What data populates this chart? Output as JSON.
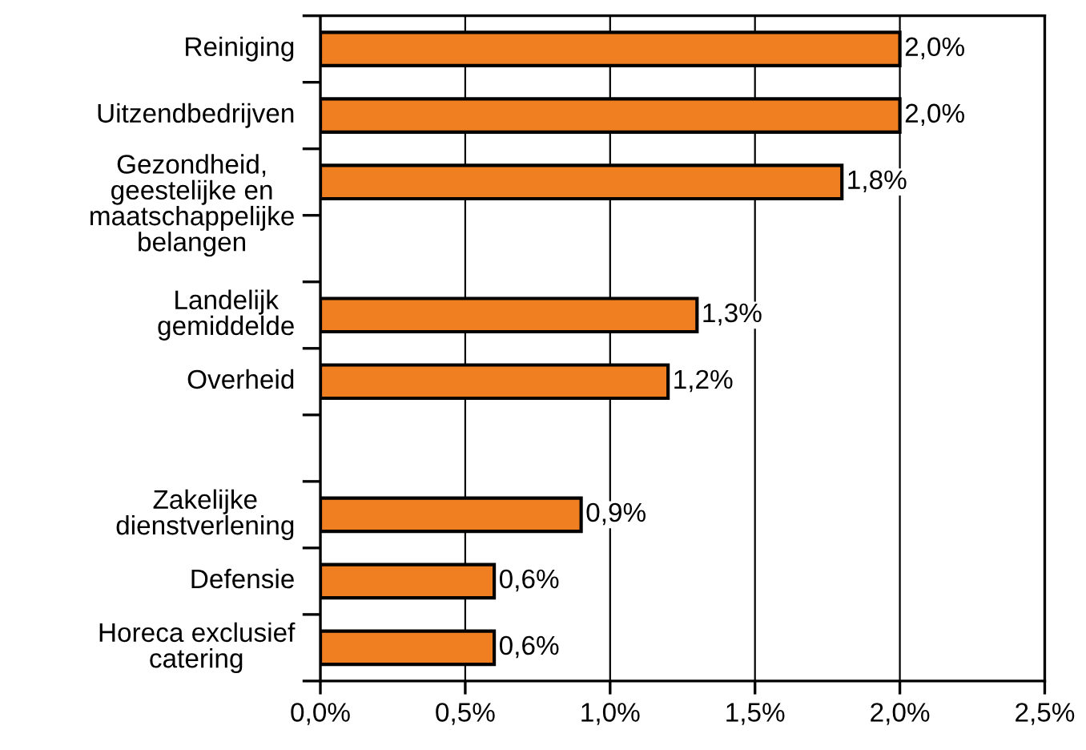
{
  "chart_data": {
    "type": "bar",
    "orientation": "horizontal",
    "categories": [
      "Reiniging",
      "Uitzendbedrijven",
      "Gezondheid,\ngeestelijke en\nmaatschappelijke\nbelangen",
      null,
      "Landelijk\ngemiddelde",
      "Overheid",
      null,
      "Zakelijke\ndienstverlening",
      "Defensie",
      "Horeca exclusief\ncatering"
    ],
    "values": [
      2.0,
      2.0,
      1.8,
      null,
      1.3,
      1.2,
      null,
      0.9,
      0.6,
      0.6
    ],
    "value_labels": [
      "2,0%",
      "2,0%",
      "1,8%",
      null,
      "1,3%",
      "1,2%",
      null,
      "0,9%",
      "0,6%",
      "0,6%"
    ],
    "color": "#f07f22",
    "xlim": [
      0,
      2.5
    ],
    "xticks": [
      {
        "value": 0,
        "label": "0,0%"
      },
      {
        "value": 0.5,
        "label": "0,5%"
      },
      {
        "value": 1.0,
        "label": "1,0%"
      },
      {
        "value": 1.5,
        "label": "1,5%"
      },
      {
        "value": 2.0,
        "label": "2,0%"
      },
      {
        "value": 2.5,
        "label": "2,5%"
      }
    ],
    "grid": "x"
  }
}
